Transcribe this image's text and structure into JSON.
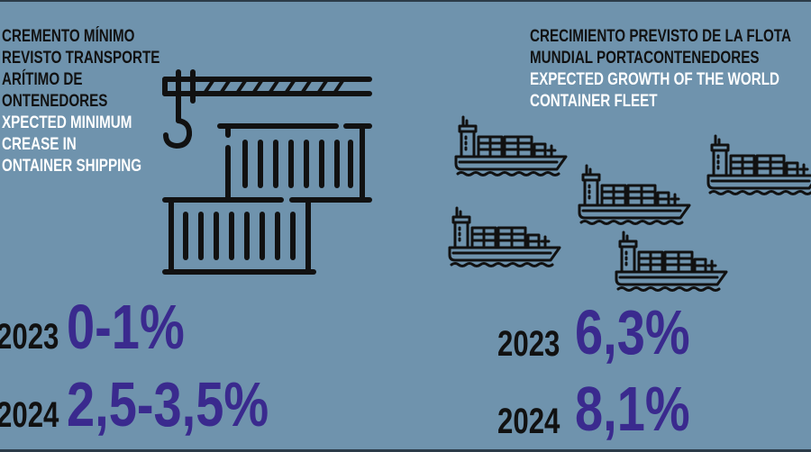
{
  "left": {
    "heading_es": [
      "CREMENTO MÍNIMO",
      "REVISTO TRANSPORTE",
      "ARÍTIMO DE",
      "ONTENEDORES"
    ],
    "heading_en": [
      "XPECTED MINIMUM",
      "CREASE IN",
      "ONTAINER SHIPPING"
    ],
    "icon": "crane-containers-icon",
    "rows": [
      {
        "year": "2023",
        "value": "0-1%"
      },
      {
        "year": "2024",
        "value": "2,5-3,5%"
      }
    ]
  },
  "right": {
    "heading_es": [
      "CRECIMIENTO PREVISTO DE LA FLOTA",
      "MUNDIAL PORTACONTENEDORES"
    ],
    "heading_en": [
      "EXPECTED GROWTH OF THE WORLD",
      "CONTAINER FLEET"
    ],
    "icon": "container-ship-icon",
    "rows": [
      {
        "year": "2023",
        "value": "6,3%"
      },
      {
        "year": "2024",
        "value": "8,1%"
      }
    ]
  },
  "colors": {
    "background": "#6f93ad",
    "value": "#3a2a8e",
    "heading_es": "#111111",
    "heading_en": "#ffffff"
  }
}
